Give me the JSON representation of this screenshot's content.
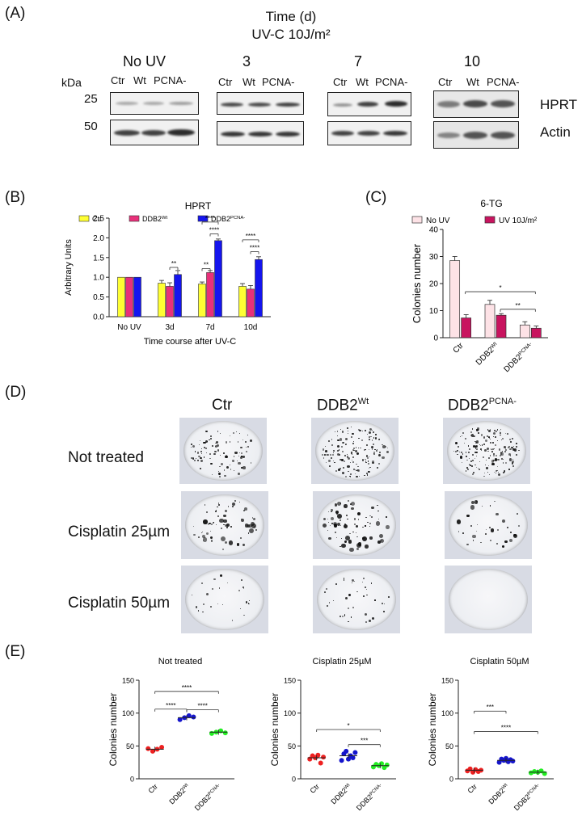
{
  "panels": {
    "a": "(A)",
    "b": "(B)",
    "c": "(C)",
    "d": "(D)",
    "e": "(E)"
  },
  "panelA": {
    "title1": "Time (d)",
    "title2": "UV-C 10J/m²",
    "groups": [
      "No UV",
      "3",
      "7",
      "10"
    ],
    "lanes": [
      "Ctr",
      "Wt",
      "PCNA-"
    ],
    "kda": "kDa",
    "mw": [
      "25",
      "50"
    ],
    "proteins": [
      "HPRT",
      "Actin"
    ]
  },
  "chart_data": [
    {
      "type": "bar",
      "title": "HPRT",
      "ylabel": "Arbitrary Units",
      "xlabel": "Time course after UV-C",
      "categories": [
        "No UV",
        "3d",
        "7d",
        "10d"
      ],
      "ylim": [
        0,
        2.5
      ],
      "yticks": [
        "0.0",
        "0.5",
        "1.0",
        "1.5",
        "2.0",
        "2.5"
      ],
      "legend": [
        "Ctr",
        "DDB2",
        "DDB2"
      ],
      "legend_sup": [
        "",
        "Wt",
        "PCNA-"
      ],
      "colors": [
        "#ffff33",
        "#e8307a",
        "#1515ee"
      ],
      "series": [
        {
          "name": "Ctr",
          "values": [
            1.0,
            0.85,
            0.83,
            0.77
          ],
          "err": [
            0,
            0.07,
            0.05,
            0.07
          ]
        },
        {
          "name": "DDB2Wt",
          "values": [
            1.0,
            0.77,
            1.12,
            0.7
          ],
          "err": [
            0,
            0.09,
            0.05,
            0.09
          ]
        },
        {
          "name": "DDB2PCNA-",
          "values": [
            1.0,
            1.07,
            1.93,
            1.45
          ],
          "err": [
            0,
            0.1,
            0.04,
            0.07
          ]
        }
      ],
      "significance": [
        "**",
        "**",
        "****",
        "****",
        "****",
        "****"
      ]
    },
    {
      "type": "bar",
      "title": "6-TG",
      "ylabel": "Colonies number",
      "categories": [
        "Ctr",
        "DDB2",
        "DDB2"
      ],
      "category_sup": [
        "",
        "Wt",
        "PCNA-"
      ],
      "ylim": [
        0,
        40
      ],
      "yticks": [
        "0",
        "10",
        "20",
        "30",
        "40"
      ],
      "legend": [
        "No UV",
        "UV 10J/m²"
      ],
      "colors": [
        "#fde2e6",
        "#c8145f"
      ],
      "series": [
        {
          "name": "No UV",
          "values": [
            28.5,
            12.3,
            4.7
          ],
          "err": [
            1.5,
            1.5,
            1.2
          ]
        },
        {
          "name": "UV 10J/m²",
          "values": [
            7.3,
            8.3,
            3.5
          ],
          "err": [
            1.2,
            0.6,
            0.8
          ]
        }
      ],
      "significance": [
        "*",
        "**"
      ]
    },
    {
      "type": "scatter",
      "title": "Not treated",
      "ylabel": "Colonies number",
      "categories": [
        "Ctr",
        "DDB2",
        "DDB2"
      ],
      "category_sup": [
        "",
        "Wt",
        "PCNA-"
      ],
      "ylim": [
        0,
        150
      ],
      "yticks": [
        "0",
        "50",
        "100",
        "150"
      ],
      "colors": [
        "#ee2020",
        "#1515cc",
        "#22ee22"
      ],
      "points": [
        [
          46,
          42,
          45,
          48
        ],
        [
          90,
          93,
          96,
          94
        ],
        [
          69,
          71,
          73,
          70
        ]
      ],
      "means": [
        45,
        93,
        71
      ],
      "significance": [
        "****",
        "****",
        "****"
      ]
    },
    {
      "type": "scatter",
      "title": "Cisplatin 25µM",
      "ylabel": "Colonies number",
      "categories": [
        "Ctr",
        "DDB2",
        "DDB2"
      ],
      "category_sup": [
        "",
        "Wt",
        "PCNA-"
      ],
      "ylim": [
        0,
        150
      ],
      "yticks": [
        "0",
        "50",
        "100",
        "150"
      ],
      "colors": [
        "#ee2020",
        "#1515cc",
        "#22ee22"
      ],
      "points": [
        [
          30,
          35,
          32,
          36,
          24,
          33
        ],
        [
          28,
          38,
          42,
          30,
          35,
          32,
          40
        ],
        [
          18,
          22,
          20,
          23,
          17,
          21
        ]
      ],
      "means": [
        32,
        35,
        20
      ],
      "significance": [
        "*",
        "***"
      ]
    },
    {
      "type": "scatter",
      "title": "Cisplatin 50µM",
      "ylabel": "Colonies number",
      "categories": [
        "Ctr",
        "DDB2",
        "DDB2"
      ],
      "category_sup": [
        "",
        "Wt",
        "PCNA-"
      ],
      "ylim": [
        0,
        150
      ],
      "yticks": [
        "0",
        "50",
        "100",
        "150"
      ],
      "colors": [
        "#ee2020",
        "#1515cc",
        "#22ee22"
      ],
      "points": [
        [
          12,
          15,
          10,
          14,
          11,
          13
        ],
        [
          25,
          30,
          28,
          31,
          26,
          29,
          27
        ],
        [
          9,
          11,
          10,
          12,
          8
        ]
      ],
      "means": [
        13,
        28,
        10
      ],
      "significance": [
        "***",
        "****"
      ]
    }
  ],
  "panelD": {
    "columns": [
      "Ctr",
      "DDB2",
      "DDB2"
    ],
    "column_sup": [
      "",
      "Wt",
      "PCNA-"
    ],
    "rows": [
      "Not treated",
      "Cisplatin 25µm",
      "Cisplatin 50µm"
    ]
  }
}
